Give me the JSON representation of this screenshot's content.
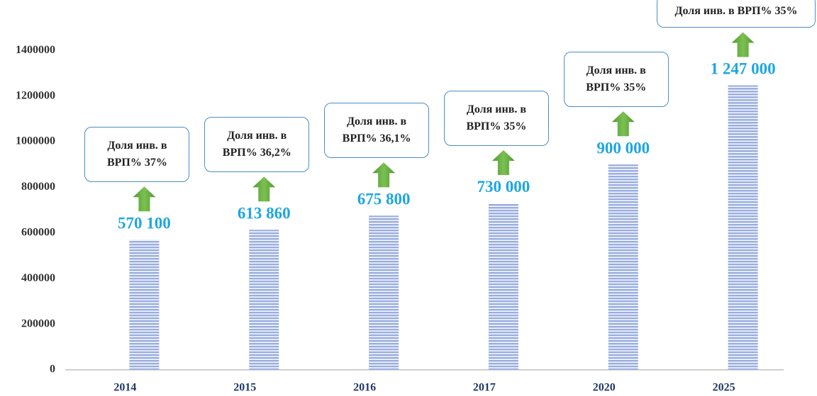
{
  "chart_data": {
    "type": "bar",
    "categories": [
      "2014",
      "2015",
      "2016",
      "2017",
      "2020",
      "2025"
    ],
    "values": [
      570100,
      613860,
      675800,
      730000,
      900000,
      1247000
    ],
    "value_labels": [
      "570 100",
      "613 860",
      "675 800",
      "730 000",
      "900 000",
      "1 247 000"
    ],
    "annotations": [
      "Доля инв. в ВРП% 37%",
      "Доля инв. в ВРП% 36,2%",
      "Доля инв. в ВРП% 36,1%",
      "Доля инв. в ВРП% 35%",
      "Доля инв. в ВРП% 35%",
      "Доля инв. в ВРП% 35%"
    ],
    "color": "#9aaee0",
    "ylim": [
      0,
      1500000
    ],
    "yticks": [
      0,
      200000,
      400000,
      600000,
      800000,
      1000000,
      1200000,
      1400000
    ],
    "grid": false
  }
}
